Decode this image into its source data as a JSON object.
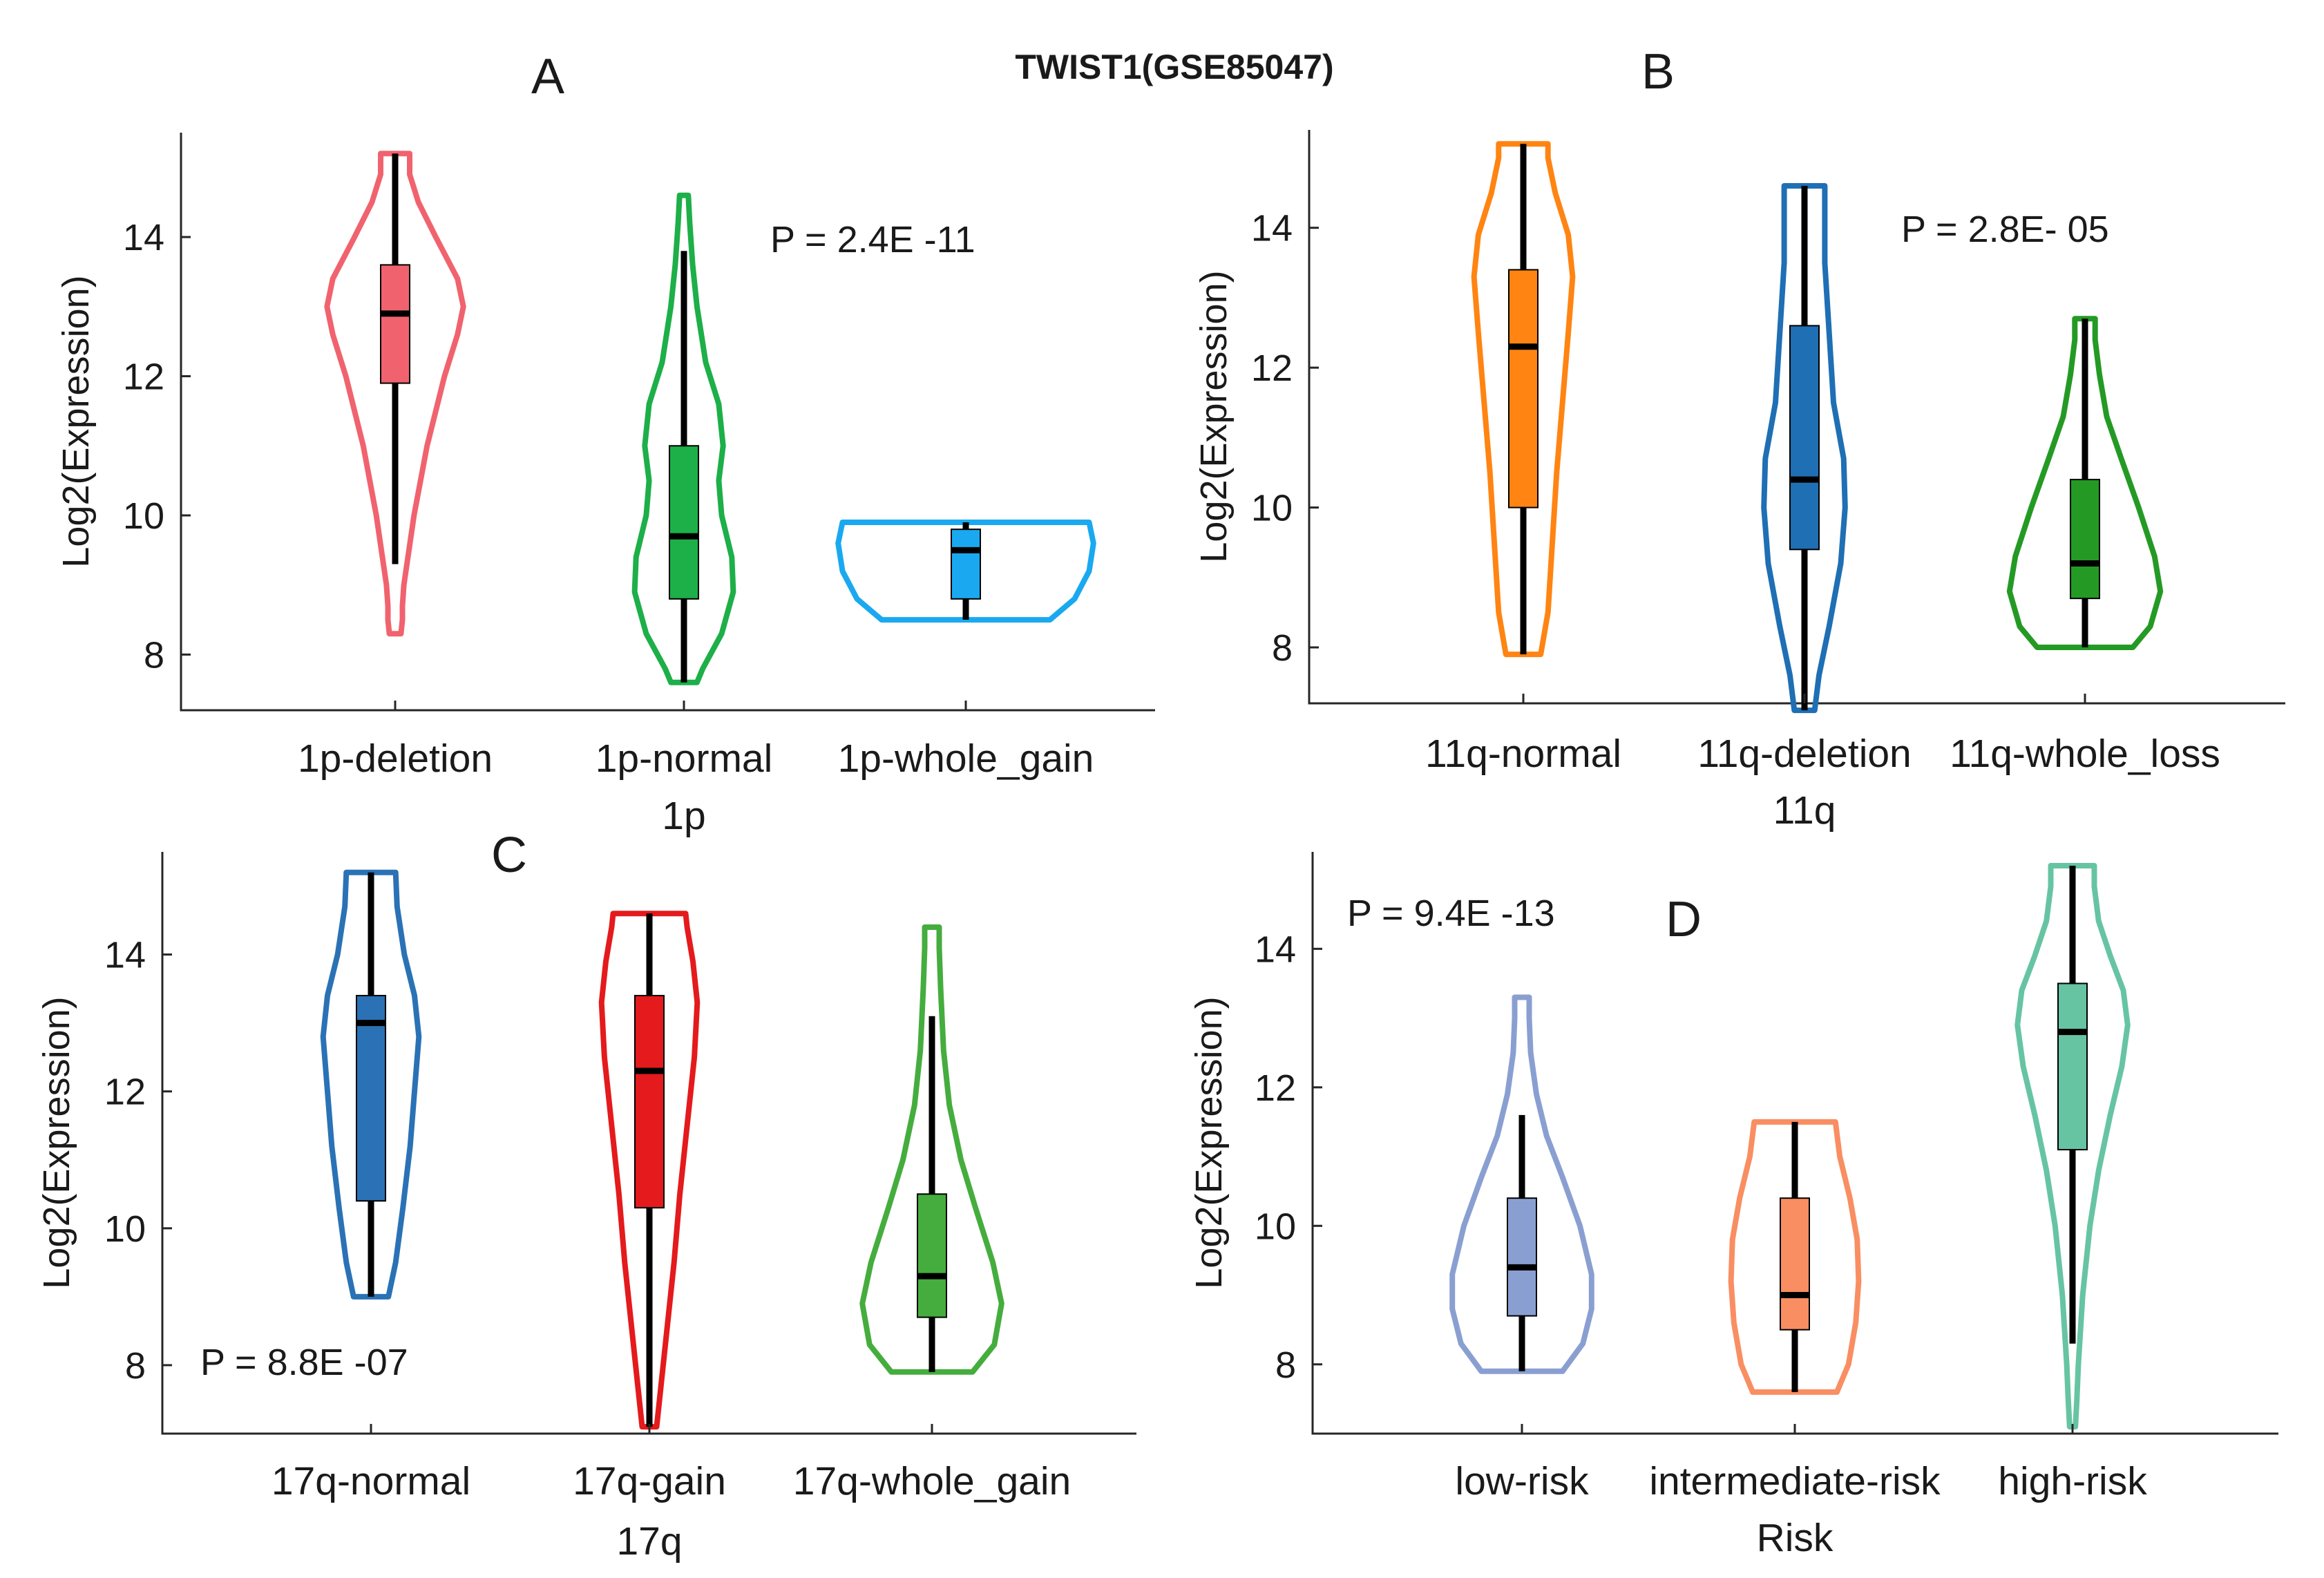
{
  "title": "TWIST1(GSE85047)",
  "chart_data": [
    {
      "type": "violin",
      "panel_label": "A",
      "ylabel": "Log2(Expression)",
      "xlabel": "1p",
      "ylim": [
        7.2,
        15.5
      ],
      "yticks": [
        "8",
        "10",
        "12",
        "14"
      ],
      "p_value": "P = 2.4E -11",
      "p_position": "top-right",
      "groups": [
        {
          "name": "1p-deletion",
          "color": "#F0636E",
          "min": 8.3,
          "q1": 11.9,
          "median": 12.9,
          "q3": 13.6,
          "max": 15.2,
          "whisker_low": 9.3,
          "profile": [
            [
              8.3,
              0.04
            ],
            [
              8.5,
              0.05
            ],
            [
              8.7,
              0.05
            ],
            [
              9.0,
              0.06
            ],
            [
              10.0,
              0.13
            ],
            [
              11.0,
              0.22
            ],
            [
              12.0,
              0.34
            ],
            [
              12.6,
              0.43
            ],
            [
              13.0,
              0.47
            ],
            [
              13.4,
              0.43
            ],
            [
              14.0,
              0.28
            ],
            [
              14.5,
              0.16
            ],
            [
              14.9,
              0.1
            ],
            [
              15.2,
              0.1
            ]
          ]
        },
        {
          "name": "1p-normal",
          "color": "#1DAF48",
          "min": 7.6,
          "q1": 8.8,
          "median": 9.7,
          "q3": 11.0,
          "max": 14.6,
          "whisker_low": 7.6,
          "whisker_high": 13.8,
          "profile": [
            [
              7.6,
              0.09
            ],
            [
              7.8,
              0.13
            ],
            [
              8.3,
              0.26
            ],
            [
              8.9,
              0.34
            ],
            [
              9.4,
              0.33
            ],
            [
              10.0,
              0.26
            ],
            [
              10.5,
              0.24
            ],
            [
              11.0,
              0.27
            ],
            [
              11.6,
              0.24
            ],
            [
              12.2,
              0.15
            ],
            [
              13.0,
              0.09
            ],
            [
              13.6,
              0.06
            ],
            [
              14.2,
              0.04
            ],
            [
              14.6,
              0.03
            ]
          ]
        },
        {
          "name": "1p-whole_gain",
          "color": "#1AA9F0",
          "min": 8.5,
          "q1": 8.8,
          "median": 9.5,
          "q3": 9.8,
          "max": 9.9,
          "whisker_low": 8.5,
          "profile": [
            [
              8.5,
              0.58
            ],
            [
              8.8,
              0.75
            ],
            [
              9.2,
              0.85
            ],
            [
              9.6,
              0.88
            ],
            [
              9.9,
              0.85
            ]
          ]
        }
      ]
    },
    {
      "type": "violin",
      "panel_label": "B",
      "ylabel": "Log2(Expression)",
      "xlabel": "11q",
      "ylim": [
        7.2,
        15.4
      ],
      "yticks": [
        "8",
        "10",
        "12",
        "14"
      ],
      "p_value": "P = 2.8E- 05",
      "p_position": "top-right",
      "groups": [
        {
          "name": "11q-normal",
          "color": "#FF8412",
          "min": 7.9,
          "q1": 10.0,
          "median": 12.3,
          "q3": 13.4,
          "max": 15.2,
          "profile": [
            [
              7.9,
              0.12
            ],
            [
              8.5,
              0.17
            ],
            [
              9.5,
              0.2
            ],
            [
              10.5,
              0.23
            ],
            [
              11.5,
              0.27
            ],
            [
              12.5,
              0.31
            ],
            [
              13.3,
              0.34
            ],
            [
              13.9,
              0.31
            ],
            [
              14.5,
              0.22
            ],
            [
              15.0,
              0.17
            ],
            [
              15.2,
              0.17
            ]
          ]
        },
        {
          "name": "11q-deletion",
          "color": "#1F6FB4",
          "min": 7.1,
          "q1": 9.4,
          "median": 10.4,
          "q3": 12.6,
          "max": 14.6,
          "profile": [
            [
              7.1,
              0.07
            ],
            [
              7.6,
              0.1
            ],
            [
              8.3,
              0.17
            ],
            [
              9.2,
              0.25
            ],
            [
              10.0,
              0.28
            ],
            [
              10.7,
              0.27
            ],
            [
              11.5,
              0.2
            ],
            [
              12.5,
              0.17
            ],
            [
              13.5,
              0.14
            ],
            [
              14.2,
              0.14
            ],
            [
              14.6,
              0.14
            ]
          ]
        },
        {
          "name": "11q-whole_loss",
          "color": "#249A25",
          "min": 8.0,
          "q1": 8.7,
          "median": 9.2,
          "q3": 10.4,
          "max": 12.7,
          "profile": [
            [
              8.0,
              0.33
            ],
            [
              8.3,
              0.45
            ],
            [
              8.8,
              0.52
            ],
            [
              9.3,
              0.48
            ],
            [
              10.0,
              0.37
            ],
            [
              10.7,
              0.25
            ],
            [
              11.3,
              0.15
            ],
            [
              11.9,
              0.1
            ],
            [
              12.4,
              0.07
            ],
            [
              12.7,
              0.07
            ]
          ]
        }
      ]
    },
    {
      "type": "violin",
      "panel_label": "C",
      "ylabel": "Log2(Expression)",
      "xlabel": "17q",
      "ylim": [
        7.0,
        15.5
      ],
      "yticks": [
        "8",
        "10",
        "12",
        "14"
      ],
      "p_value": "P = 8.8E -07",
      "p_position": "bottom-left",
      "groups": [
        {
          "name": "17q-normal",
          "color": "#2A72B5",
          "min": 9.0,
          "q1": 10.4,
          "median": 13.0,
          "q3": 13.4,
          "max": 15.2,
          "profile": [
            [
              9.0,
              0.12
            ],
            [
              9.5,
              0.17
            ],
            [
              10.3,
              0.22
            ],
            [
              11.2,
              0.27
            ],
            [
              12.0,
              0.3
            ],
            [
              12.8,
              0.33
            ],
            [
              13.4,
              0.3
            ],
            [
              14.0,
              0.23
            ],
            [
              14.7,
              0.18
            ],
            [
              15.2,
              0.17
            ]
          ]
        },
        {
          "name": "17q-gain",
          "color": "#E41A1C",
          "min": 7.1,
          "q1": 10.3,
          "median": 12.3,
          "q3": 13.4,
          "max": 14.6,
          "profile": [
            [
              7.1,
              0.05
            ],
            [
              7.7,
              0.08
            ],
            [
              8.5,
              0.12
            ],
            [
              9.5,
              0.17
            ],
            [
              10.5,
              0.21
            ],
            [
              11.5,
              0.26
            ],
            [
              12.5,
              0.31
            ],
            [
              13.3,
              0.33
            ],
            [
              13.9,
              0.3
            ],
            [
              14.4,
              0.26
            ],
            [
              14.6,
              0.25
            ]
          ]
        },
        {
          "name": "17q-whole_gain",
          "color": "#45AD3E",
          "min": 7.9,
          "q1": 8.7,
          "median": 9.3,
          "q3": 10.5,
          "max": 14.4,
          "whisker_high": 13.1,
          "profile": [
            [
              7.9,
              0.28
            ],
            [
              8.3,
              0.43
            ],
            [
              8.9,
              0.48
            ],
            [
              9.5,
              0.42
            ],
            [
              10.3,
              0.3
            ],
            [
              11.0,
              0.2
            ],
            [
              11.8,
              0.12
            ],
            [
              12.6,
              0.08
            ],
            [
              13.5,
              0.06
            ],
            [
              14.1,
              0.05
            ],
            [
              14.4,
              0.05
            ]
          ]
        }
      ]
    },
    {
      "type": "violin",
      "panel_label": "D",
      "ylabel": "Log2(Expression)",
      "xlabel": "Risk",
      "ylim": [
        7.0,
        15.4
      ],
      "yticks": [
        "8",
        "10",
        "12",
        "14"
      ],
      "p_value": "P = 9.4E -13",
      "p_position": "top-left",
      "groups": [
        {
          "name": "low-risk",
          "color": "#8A9FD1",
          "min": 7.9,
          "q1": 8.7,
          "median": 9.4,
          "q3": 10.4,
          "max": 13.3,
          "whisker_high": 11.6,
          "profile": [
            [
              7.9,
              0.28
            ],
            [
              8.3,
              0.42
            ],
            [
              8.8,
              0.48
            ],
            [
              9.3,
              0.48
            ],
            [
              10.0,
              0.4
            ],
            [
              10.7,
              0.28
            ],
            [
              11.3,
              0.17
            ],
            [
              11.9,
              0.1
            ],
            [
              12.5,
              0.06
            ],
            [
              13.0,
              0.05
            ],
            [
              13.3,
              0.05
            ]
          ]
        },
        {
          "name": "intermediate-risk",
          "color": "#F98E62",
          "min": 7.6,
          "q1": 8.5,
          "median": 9.0,
          "q3": 10.4,
          "max": 11.5,
          "profile": [
            [
              7.6,
              0.29
            ],
            [
              8.0,
              0.37
            ],
            [
              8.6,
              0.42
            ],
            [
              9.2,
              0.44
            ],
            [
              9.8,
              0.43
            ],
            [
              10.4,
              0.38
            ],
            [
              11.0,
              0.31
            ],
            [
              11.5,
              0.28
            ]
          ]
        },
        {
          "name": "high-risk",
          "color": "#66C4A3",
          "min": 7.1,
          "q1": 11.1,
          "median": 12.8,
          "q3": 13.5,
          "max": 15.2,
          "whisker_low": 8.3,
          "profile": [
            [
              7.1,
              0.02
            ],
            [
              7.5,
              0.03
            ],
            [
              8.0,
              0.04
            ],
            [
              9.0,
              0.07
            ],
            [
              10.0,
              0.12
            ],
            [
              10.8,
              0.18
            ],
            [
              11.6,
              0.26
            ],
            [
              12.3,
              0.34
            ],
            [
              12.9,
              0.38
            ],
            [
              13.4,
              0.35
            ],
            [
              13.9,
              0.26
            ],
            [
              14.4,
              0.18
            ],
            [
              14.9,
              0.15
            ],
            [
              15.2,
              0.15
            ]
          ]
        }
      ]
    }
  ]
}
